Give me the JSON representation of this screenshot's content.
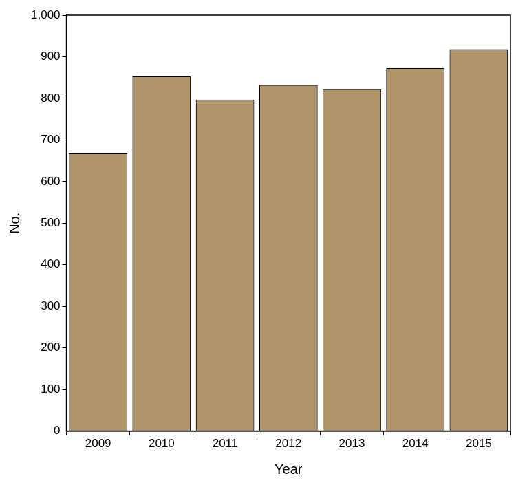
{
  "chart_data": {
    "type": "bar",
    "x_label": "Year",
    "y_label": "No.",
    "categories": [
      "2009",
      "2010",
      "2011",
      "2012",
      "2013",
      "2014",
      "2015"
    ],
    "values": [
      668,
      853,
      797,
      832,
      822,
      873,
      918
    ],
    "color": "#b0956b",
    "ylim": [
      0,
      1000
    ],
    "yticks": [
      0,
      100,
      200,
      300,
      400,
      500,
      600,
      700,
      800,
      900,
      {
        "value": 1000,
        "label": "1,000"
      }
    ],
    "grid": false
  }
}
